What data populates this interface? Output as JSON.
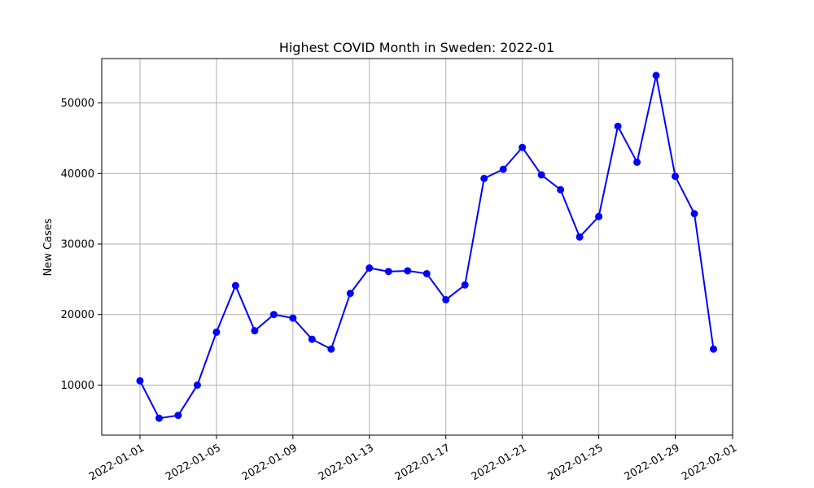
{
  "chart_data": {
    "type": "line",
    "title": "Highest COVID Month in Sweden: 2022-01",
    "xlabel": "",
    "ylabel": "New Cases",
    "grid": true,
    "line_color": "#0000ff",
    "marker": "circle",
    "x_ticks": [
      "2022-01-01",
      "2022-01-05",
      "2022-01-09",
      "2022-01-13",
      "2022-01-17",
      "2022-01-21",
      "2022-01-25",
      "2022-01-29",
      "2022-02-01"
    ],
    "y_ticks": [
      10000,
      20000,
      30000,
      40000,
      50000
    ],
    "xlim": [
      "2021-12-30",
      "2022-02-01"
    ],
    "ylim": [
      2900,
      56300
    ],
    "x": [
      "2022-01-01",
      "2022-01-02",
      "2022-01-03",
      "2022-01-04",
      "2022-01-05",
      "2022-01-06",
      "2022-01-07",
      "2022-01-08",
      "2022-01-09",
      "2022-01-10",
      "2022-01-11",
      "2022-01-12",
      "2022-01-13",
      "2022-01-14",
      "2022-01-15",
      "2022-01-16",
      "2022-01-17",
      "2022-01-18",
      "2022-01-19",
      "2022-01-20",
      "2022-01-21",
      "2022-01-22",
      "2022-01-23",
      "2022-01-24",
      "2022-01-25",
      "2022-01-26",
      "2022-01-27",
      "2022-01-28",
      "2022-01-29",
      "2022-01-30",
      "2022-01-31"
    ],
    "series": [
      {
        "values": [
          10600,
          5300,
          5700,
          10000,
          17500,
          24100,
          17700,
          20000,
          19500,
          16500,
          15100,
          23000,
          26600,
          26100,
          26200,
          25800,
          22100,
          24200,
          39300,
          40600,
          43700,
          39800,
          37700,
          31000,
          33900,
          46700,
          41600,
          53900,
          39600,
          34300,
          15100
        ]
      }
    ]
  }
}
